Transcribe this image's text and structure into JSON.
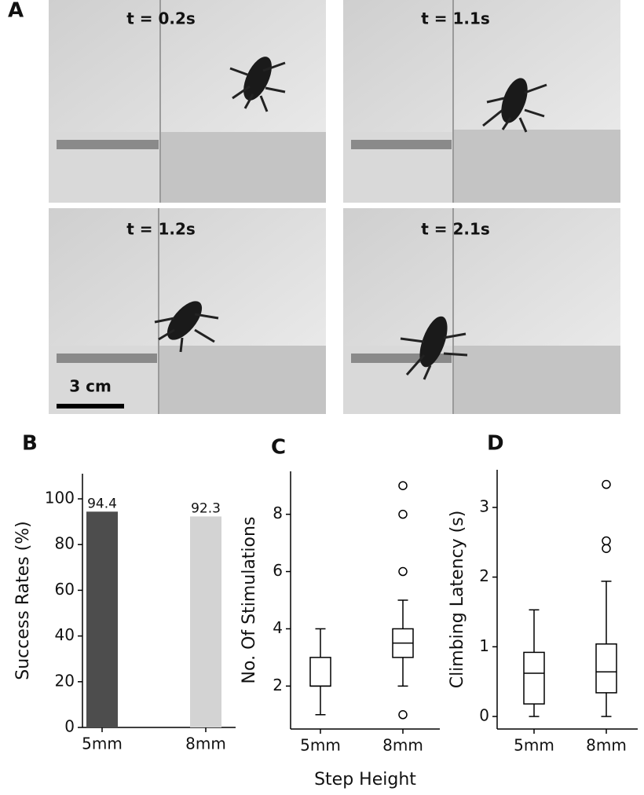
{
  "photos": {
    "label": "A",
    "frames": [
      "t = 0.2s",
      "t = 1.1s",
      "t = 1.2s",
      "t = 2.1s"
    ],
    "scale_bar": "3 cm"
  },
  "chart_data": [
    {
      "type": "bar",
      "label": "B",
      "ylabel": "Success Rates (%)",
      "categories": [
        "5mm",
        "8mm"
      ],
      "values": [
        94.4,
        92.3
      ],
      "colors": [
        "#4d4d4d",
        "#d3d3d3"
      ],
      "ylim": [
        0,
        111
      ],
      "yticks": [
        0,
        20,
        40,
        60,
        80,
        100
      ]
    },
    {
      "type": "box",
      "label": "C",
      "ylabel": "No. Of Stimulations",
      "xlabel": "Step Height",
      "categories": [
        "5mm",
        "8mm"
      ],
      "boxes": [
        {
          "whislo": 1,
          "q1": 2,
          "med": 2,
          "q3": 3,
          "whishi": 4,
          "fliers": []
        },
        {
          "whislo": 2,
          "q1": 3,
          "med": 3.5,
          "q3": 4,
          "whishi": 5,
          "fliers": [
            9,
            8,
            6,
            1
          ]
        }
      ],
      "ylim": [
        0.5,
        9.5
      ],
      "yticks": [
        2,
        4,
        6,
        8
      ]
    },
    {
      "type": "box",
      "label": "D",
      "ylabel": "Climbing Latency (s)",
      "categories": [
        "5mm",
        "8mm"
      ],
      "boxes": [
        {
          "whislo": 0,
          "q1": 0.18,
          "med": 0.62,
          "q3": 0.92,
          "whishi": 1.53,
          "fliers": []
        },
        {
          "whislo": 0,
          "q1": 0.34,
          "med": 0.64,
          "q3": 1.04,
          "whishi": 1.94,
          "fliers": [
            3.33,
            2.52,
            2.41
          ]
        }
      ],
      "ylim": [
        -0.18,
        3.54
      ],
      "yticks": [
        0,
        1,
        2,
        3
      ]
    }
  ]
}
